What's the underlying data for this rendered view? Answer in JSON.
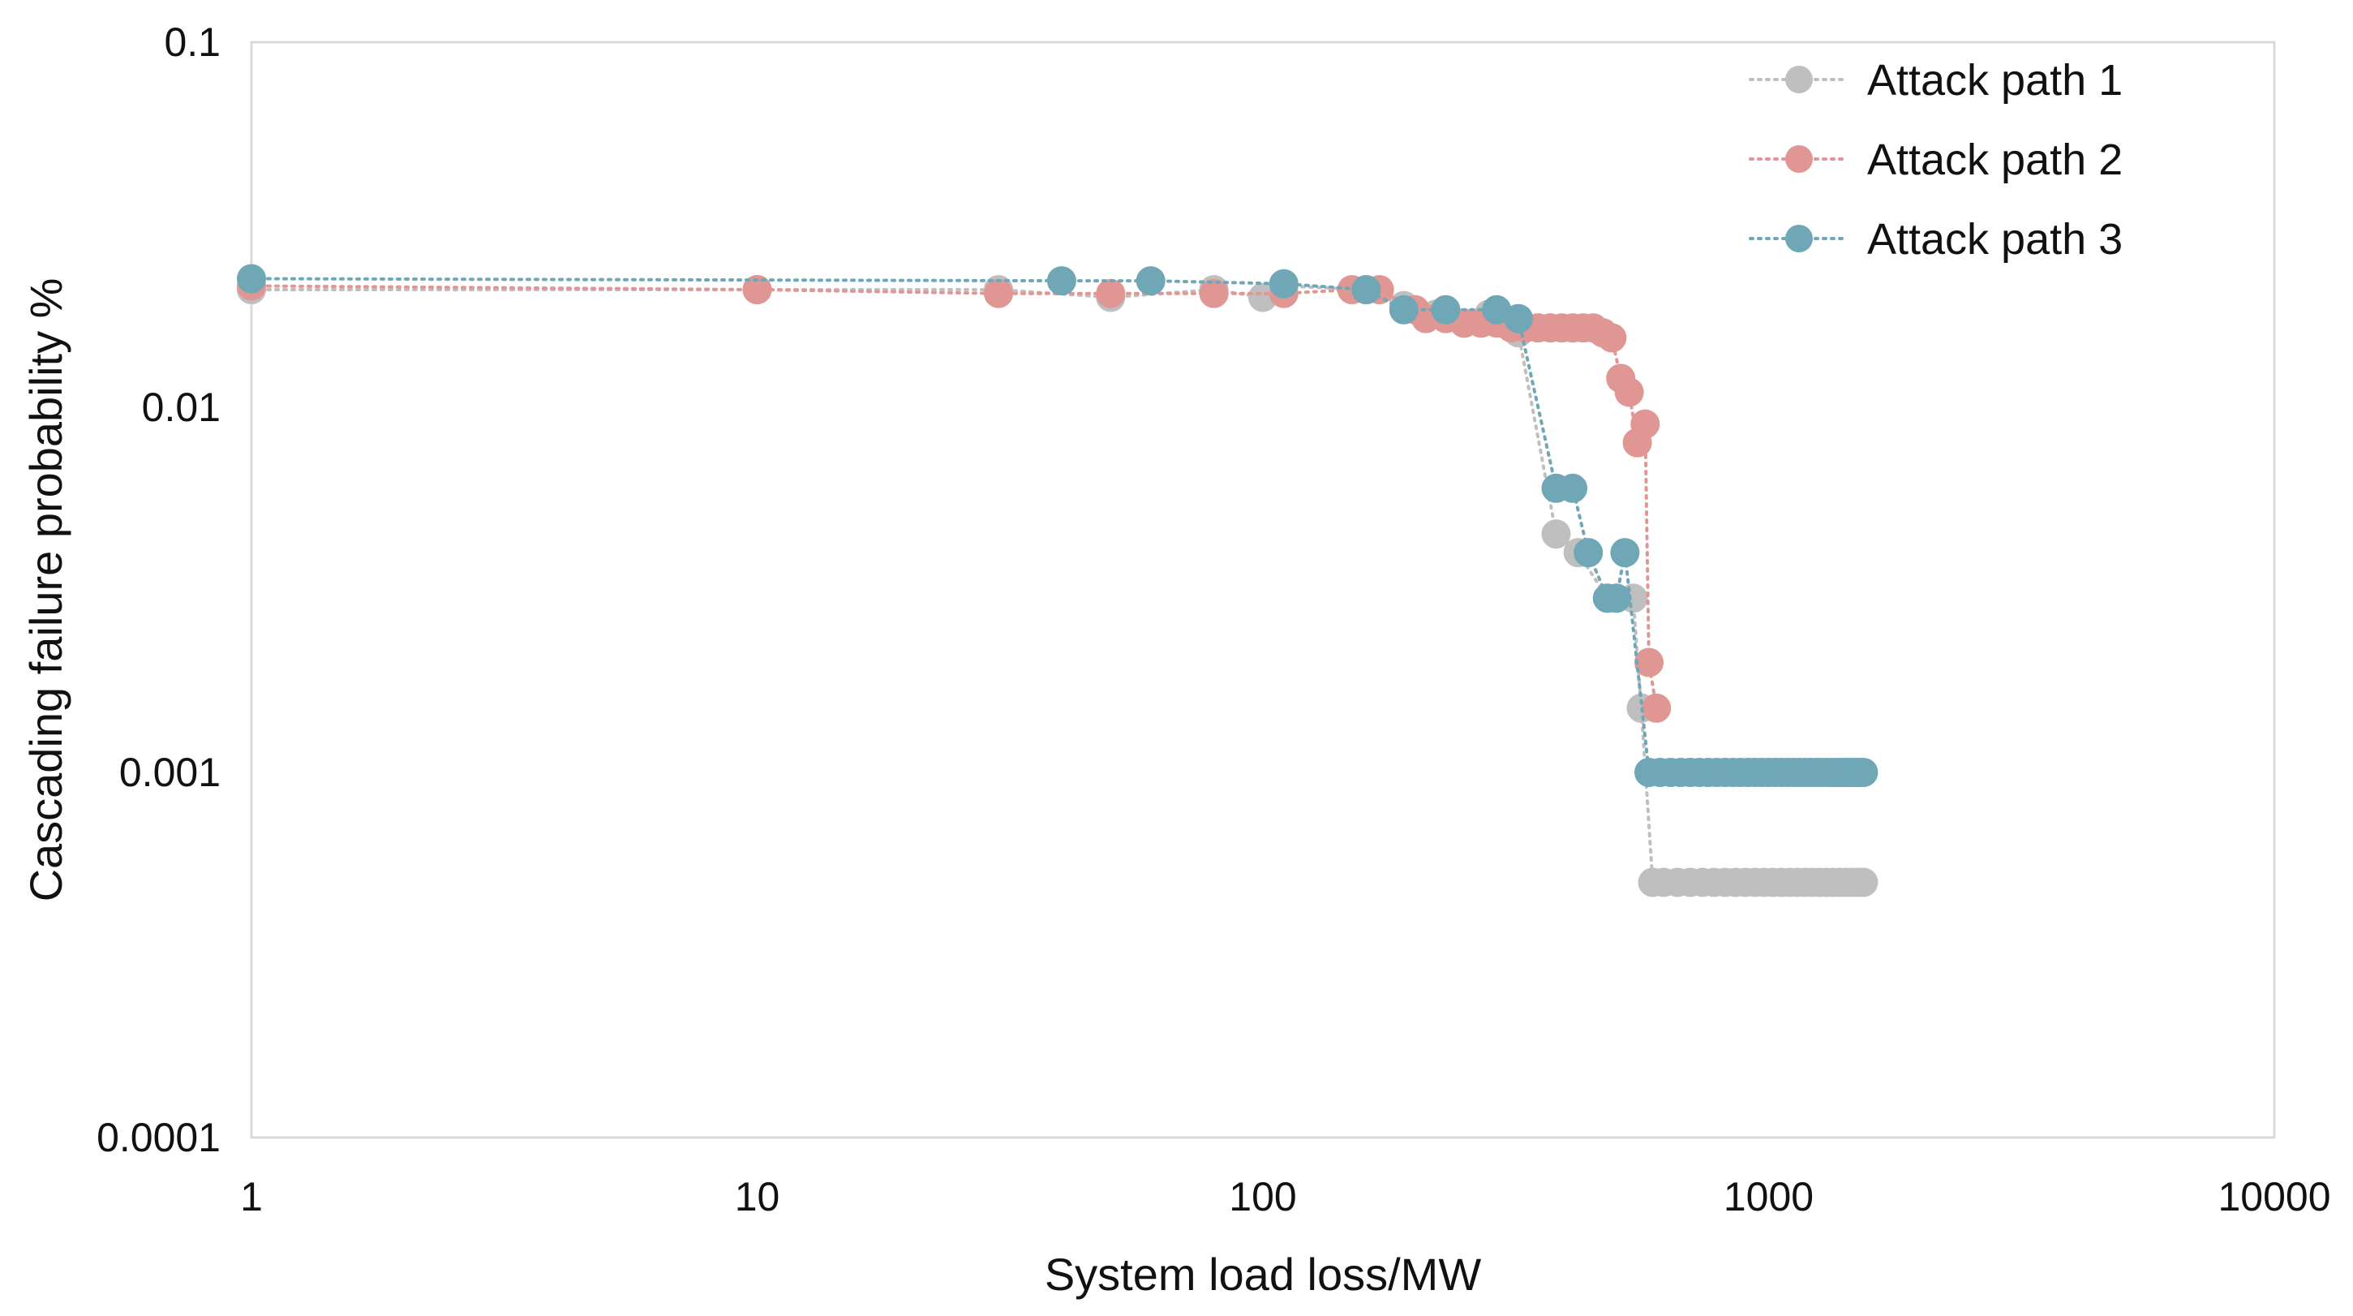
{
  "chart_data": {
    "type": "scatter",
    "title": "",
    "xlabel": "System load loss/MW",
    "ylabel": "Cascading failure probability %",
    "xscale": "log",
    "yscale": "log",
    "xlim": [
      1,
      10000
    ],
    "ylim": [
      0.0001,
      0.1
    ],
    "x_ticks": [
      {
        "value": 1,
        "label": "1"
      },
      {
        "value": 10,
        "label": "10"
      },
      {
        "value": 100,
        "label": "100"
      },
      {
        "value": 1000,
        "label": "1000"
      },
      {
        "value": 10000,
        "label": "10000"
      }
    ],
    "y_ticks": [
      {
        "value": 0.1,
        "label": "0.1"
      },
      {
        "value": 0.01,
        "label": "0.01"
      },
      {
        "value": 0.001,
        "label": "0.001"
      },
      {
        "value": 0.0001,
        "label": "0.0001"
      }
    ],
    "grid": false,
    "legend_position": "top-right",
    "series": [
      {
        "name": "Attack path 1",
        "color": "#BFBFBF",
        "points": [
          [
            1,
            0.021
          ],
          [
            10,
            0.021
          ],
          [
            30,
            0.021
          ],
          [
            50,
            0.02
          ],
          [
            80,
            0.021
          ],
          [
            100,
            0.02
          ],
          [
            110,
            0.0215
          ],
          [
            160,
            0.021
          ],
          [
            190,
            0.019
          ],
          [
            220,
            0.018
          ],
          [
            250,
            0.017
          ],
          [
            280,
            0.018
          ],
          [
            320,
            0.016
          ],
          [
            380,
            0.0045
          ],
          [
            420,
            0.004
          ],
          [
            480,
            0.003
          ],
          [
            540,
            0.003
          ],
          [
            560,
            0.0015
          ],
          [
            590,
            0.0005
          ],
          [
            620,
            0.0005
          ],
          [
            660,
            0.0005
          ],
          [
            700,
            0.0005
          ],
          [
            740,
            0.0005
          ],
          [
            780,
            0.0005
          ],
          [
            820,
            0.0005
          ],
          [
            860,
            0.0005
          ],
          [
            900,
            0.0005
          ],
          [
            940,
            0.0005
          ],
          [
            980,
            0.0005
          ],
          [
            1020,
            0.0005
          ],
          [
            1060,
            0.0005
          ],
          [
            1100,
            0.0005
          ],
          [
            1140,
            0.0005
          ],
          [
            1180,
            0.0005
          ],
          [
            1220,
            0.0005
          ],
          [
            1260,
            0.0005
          ],
          [
            1300,
            0.0005
          ],
          [
            1340,
            0.0005
          ],
          [
            1380,
            0.0005
          ],
          [
            1420,
            0.0005
          ],
          [
            1460,
            0.0005
          ],
          [
            1500,
            0.0005
          ],
          [
            1540,
            0.0005
          ]
        ]
      },
      {
        "name": "Attack path 2",
        "color": "#E09793",
        "points": [
          [
            1,
            0.0215
          ],
          [
            10,
            0.021
          ],
          [
            30,
            0.0205
          ],
          [
            50,
            0.0205
          ],
          [
            80,
            0.0205
          ],
          [
            110,
            0.0205
          ],
          [
            150,
            0.021
          ],
          [
            170,
            0.021
          ],
          [
            200,
            0.0185
          ],
          [
            210,
            0.0175
          ],
          [
            230,
            0.0175
          ],
          [
            250,
            0.017
          ],
          [
            270,
            0.017
          ],
          [
            290,
            0.017
          ],
          [
            310,
            0.0165
          ],
          [
            330,
            0.0165
          ],
          [
            350,
            0.0165
          ],
          [
            370,
            0.0165
          ],
          [
            390,
            0.0165
          ],
          [
            410,
            0.0165
          ],
          [
            430,
            0.0165
          ],
          [
            450,
            0.0165
          ],
          [
            470,
            0.016
          ],
          [
            490,
            0.0155
          ],
          [
            510,
            0.012
          ],
          [
            530,
            0.011
          ],
          [
            550,
            0.008
          ],
          [
            570,
            0.009
          ],
          [
            580,
            0.002
          ],
          [
            600,
            0.0015
          ]
        ]
      },
      {
        "name": "Attack path 3",
        "color": "#6FA7B6",
        "points": [
          [
            1,
            0.0225
          ],
          [
            40,
            0.0222
          ],
          [
            60,
            0.0222
          ],
          [
            110,
            0.0218
          ],
          [
            160,
            0.021
          ],
          [
            190,
            0.0185
          ],
          [
            230,
            0.0185
          ],
          [
            290,
            0.0185
          ],
          [
            320,
            0.0175
          ],
          [
            380,
            0.006
          ],
          [
            410,
            0.006
          ],
          [
            440,
            0.004
          ],
          [
            480,
            0.003
          ],
          [
            500,
            0.003
          ],
          [
            520,
            0.004
          ],
          [
            580,
            0.001
          ],
          [
            610,
            0.001
          ],
          [
            640,
            0.001
          ],
          [
            670,
            0.001
          ],
          [
            700,
            0.001
          ],
          [
            730,
            0.001
          ],
          [
            760,
            0.001
          ],
          [
            790,
            0.001
          ],
          [
            820,
            0.001
          ],
          [
            850,
            0.001
          ],
          [
            880,
            0.001
          ],
          [
            910,
            0.001
          ],
          [
            940,
            0.001
          ],
          [
            970,
            0.001
          ],
          [
            1000,
            0.001
          ],
          [
            1030,
            0.001
          ],
          [
            1060,
            0.001
          ],
          [
            1090,
            0.001
          ],
          [
            1120,
            0.001
          ],
          [
            1150,
            0.001
          ],
          [
            1180,
            0.001
          ],
          [
            1210,
            0.001
          ],
          [
            1240,
            0.001
          ],
          [
            1270,
            0.001
          ],
          [
            1300,
            0.001
          ],
          [
            1330,
            0.001
          ],
          [
            1360,
            0.001
          ],
          [
            1390,
            0.001
          ],
          [
            1420,
            0.001
          ],
          [
            1450,
            0.001
          ],
          [
            1480,
            0.001
          ],
          [
            1510,
            0.001
          ],
          [
            1540,
            0.001
          ]
        ]
      }
    ]
  }
}
